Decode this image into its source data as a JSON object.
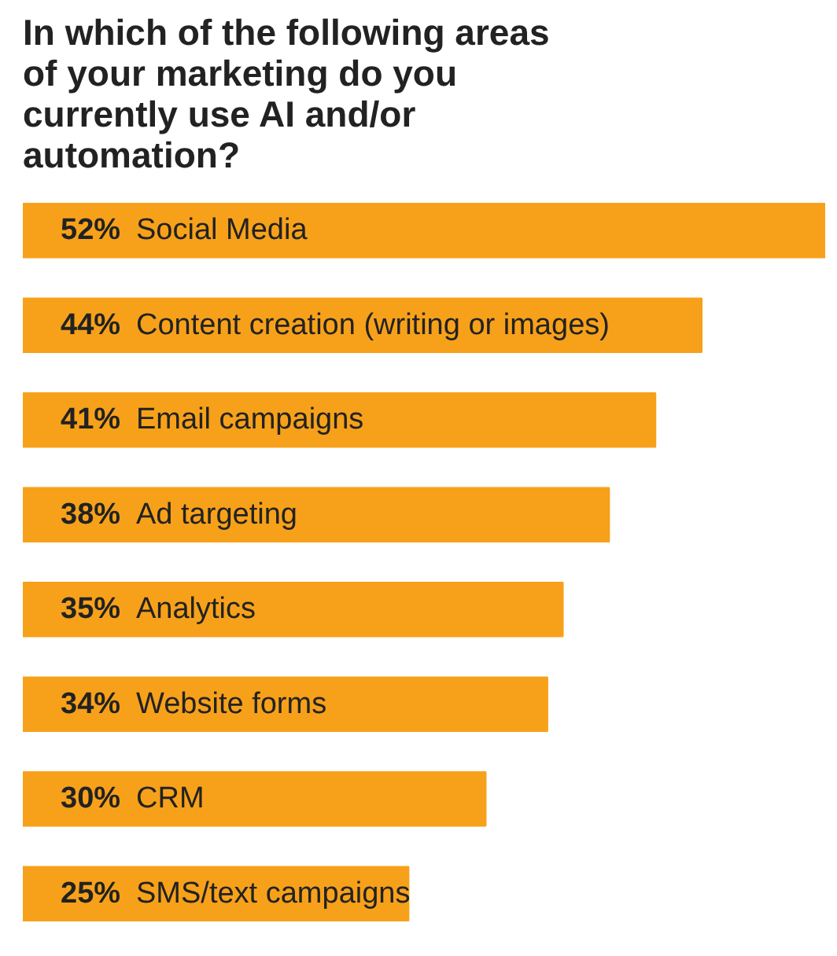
{
  "chart_data": {
    "type": "bar",
    "orientation": "horizontal",
    "title": "In which of the following areas of your marketing do you currently use AI and/or automation?",
    "categories": [
      "Social Media",
      "Content creation (writing or images)",
      "Email campaigns",
      "Ad targeting",
      "Analytics",
      "Website forms",
      "CRM",
      "SMS/text campaigns"
    ],
    "values": [
      52,
      44,
      41,
      38,
      35,
      34,
      30,
      25
    ],
    "value_labels": [
      "52%",
      "44%",
      "41%",
      "38%",
      "35%",
      "34%",
      "30%",
      "25%"
    ],
    "color": "#f7a11a",
    "grid": false
  }
}
